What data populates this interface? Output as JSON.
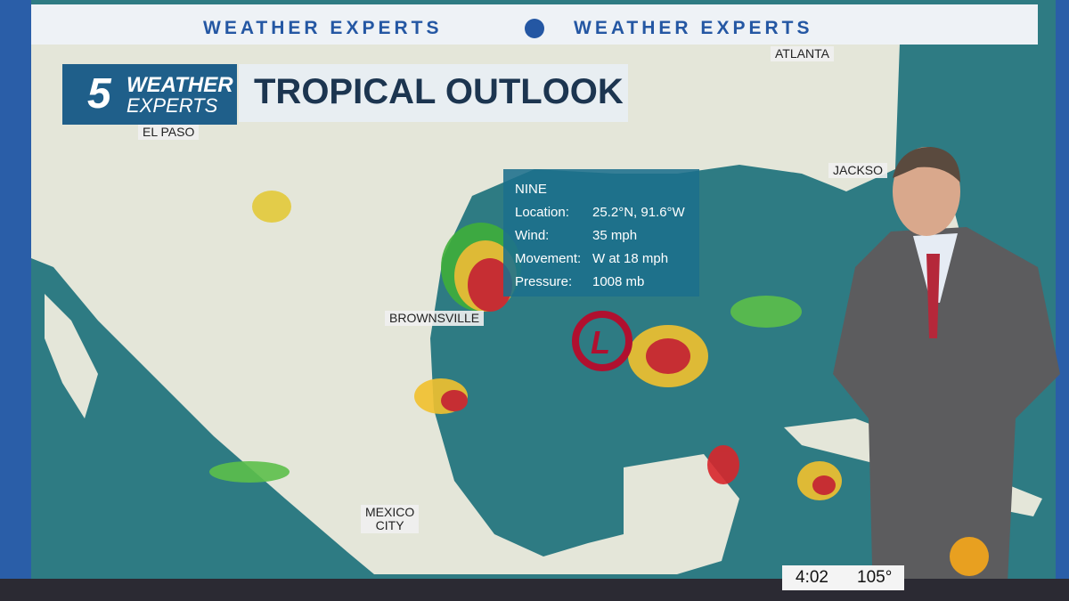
{
  "banner": {
    "left": "WEATHER EXPERTS",
    "right": "WEATHER EXPERTS"
  },
  "logo": {
    "number": "5",
    "line1": "WEATHER",
    "line2": "EXPERTS"
  },
  "title": "TROPICAL OUTLOOK",
  "map": {
    "cities": [
      {
        "lines": [
          "ATLANTA"
        ]
      },
      {
        "lines": [
          "EL PASO"
        ]
      },
      {
        "lines": [
          "JACKSO"
        ]
      },
      {
        "lines": [
          "BROWNSVILLE"
        ]
      },
      {
        "lines": [
          "MEXICO",
          "CITY"
        ]
      }
    ],
    "storm_symbol": "L"
  },
  "storm_info": {
    "name": "NINE",
    "rows": [
      {
        "label": "Location:",
        "value": "25.2°N, 91.6°W"
      },
      {
        "label": "Wind:",
        "value": "35 mph"
      },
      {
        "label": "Movement:",
        "value": "W at 18 mph"
      },
      {
        "label": "Pressure:",
        "value": "1008 mb"
      }
    ]
  },
  "bug": {
    "time": "4:02",
    "temperature": "105°"
  }
}
